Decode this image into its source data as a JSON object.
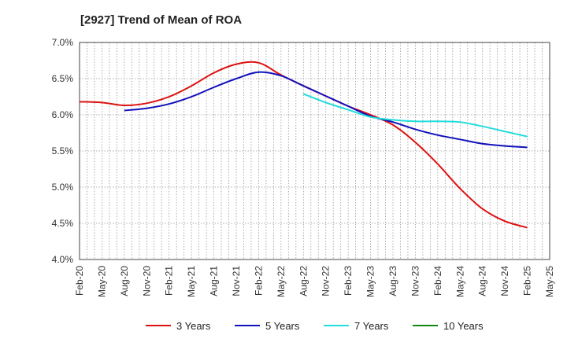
{
  "chart_data": {
    "type": "line",
    "title": "[2927]  Trend of Mean of ROA",
    "xlabel": "",
    "ylabel": "",
    "ylim": [
      4.0,
      7.0
    ],
    "y_ticks": [
      "7.0%",
      "6.5%",
      "6.0%",
      "5.5%",
      "5.0%",
      "4.5%",
      "4.0%"
    ],
    "y_tick_values": [
      7.0,
      6.5,
      6.0,
      5.5,
      5.0,
      4.5,
      4.0
    ],
    "categories": [
      "Feb-20",
      "May-20",
      "Aug-20",
      "Nov-20",
      "Feb-21",
      "May-21",
      "Aug-21",
      "Nov-21",
      "Feb-22",
      "May-22",
      "Aug-22",
      "Nov-22",
      "Feb-23",
      "May-23",
      "Aug-23",
      "Nov-23",
      "Feb-24",
      "May-24",
      "Aug-24",
      "Nov-24",
      "Feb-25",
      "May-25"
    ],
    "grid": true,
    "legend_position": "bottom",
    "series": [
      {
        "name": "3 Years",
        "color": "#dd1111",
        "values": [
          6.18,
          6.17,
          6.13,
          6.16,
          6.25,
          6.4,
          6.58,
          6.7,
          6.72,
          6.55,
          6.4,
          6.26,
          6.12,
          6.0,
          5.86,
          5.62,
          5.32,
          4.98,
          4.7,
          4.53,
          4.44,
          null
        ]
      },
      {
        "name": "5 Years",
        "color": "#1111bb",
        "values": [
          null,
          null,
          6.06,
          6.09,
          6.15,
          6.25,
          6.38,
          6.5,
          6.59,
          6.54,
          6.4,
          6.26,
          6.12,
          5.98,
          5.9,
          5.8,
          5.72,
          5.66,
          5.6,
          5.57,
          5.55,
          null
        ]
      },
      {
        "name": "7 Years",
        "color": "#22dddd",
        "values": [
          null,
          null,
          null,
          null,
          null,
          null,
          null,
          null,
          null,
          null,
          6.29,
          6.17,
          6.07,
          5.97,
          5.93,
          5.91,
          5.91,
          5.9,
          5.84,
          5.77,
          5.7,
          null
        ]
      },
      {
        "name": "10 Years",
        "color": "#118811",
        "values": [
          null,
          null,
          null,
          null,
          null,
          null,
          null,
          null,
          null,
          null,
          null,
          null,
          null,
          null,
          null,
          null,
          null,
          null,
          null,
          null,
          null,
          null
        ]
      }
    ]
  }
}
